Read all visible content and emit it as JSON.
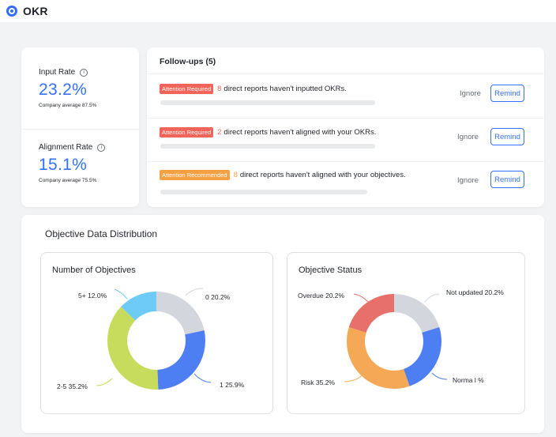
{
  "app": {
    "title": "OKR",
    "logo_icon": "target-icon",
    "accent": "#3370ff"
  },
  "rates": [
    {
      "label": "Input Rate",
      "value": "23.2%",
      "average": "Company average 87.5%",
      "info_icon": "info-icon"
    },
    {
      "label": "Alignment Rate",
      "value": "15.1%",
      "average": "Company average 75.5%",
      "info_icon": "info-icon"
    }
  ],
  "followups": {
    "title": "Follow-ups (5)",
    "items": [
      {
        "badge": "Attention Required",
        "badge_color": "#f0645a",
        "count": "8",
        "message": "direct reports haven't inputted OKRs.",
        "ignore": "Ignore",
        "remind": "Remind"
      },
      {
        "badge": "Attention Required",
        "badge_color": "#f0645a",
        "count": "2",
        "message": "direct reports haven't aligned with your OKRs.",
        "ignore": "Ignore",
        "remind": "Remind"
      },
      {
        "badge": "Attention Recommended",
        "badge_color": "#f5a043",
        "count": "8",
        "message": "direct reports haven't aligned with your objectives.",
        "ignore": "Ignore",
        "remind": "Remind"
      }
    ]
  },
  "distribution": {
    "title": "Objective Data Distribution",
    "objectives_chart": {
      "title": "Number of Objectives",
      "segments": [
        {
          "label": "0",
          "pct": "20.2%",
          "value": 20.2,
          "color": "#d3d6dd"
        },
        {
          "label": "1",
          "pct": "25.9%",
          "value": 25.9,
          "color": "#4e7ff2"
        },
        {
          "label": "2-5",
          "pct": "35.2%",
          "value": 35.2,
          "color": "#c7dc5c"
        },
        {
          "label": "5+",
          "pct": "12.0%",
          "value": 12.0,
          "color": "#6ecbf5"
        }
      ]
    },
    "status_chart": {
      "title": "Objective Status",
      "segments": [
        {
          "label": "Not updated",
          "pct": "20.2%",
          "value": 20.2,
          "color": "#d3d6dd"
        },
        {
          "label": "Norma l %",
          "pct": "",
          "value": 24.6,
          "color": "#4e7ff2"
        },
        {
          "label": "Risk",
          "pct": "35.2%",
          "value": 35.2,
          "color": "#f5a956"
        },
        {
          "label": "Overdue",
          "pct": "20.2%",
          "value": 20.2,
          "color": "#e8706a"
        }
      ]
    }
  },
  "labels_objectives": {
    "top_right": "0  20.2%",
    "bottom_right": "1  25.9%",
    "bottom_left": "2-5 35.2%",
    "top_left": "5+ 12.0%"
  },
  "labels_status": {
    "top_right": "Not updated  20.2%",
    "bottom_right": "Norma l %",
    "bottom_left": "Risk 35.2%",
    "top_left": "Overdue 20.2%"
  }
}
